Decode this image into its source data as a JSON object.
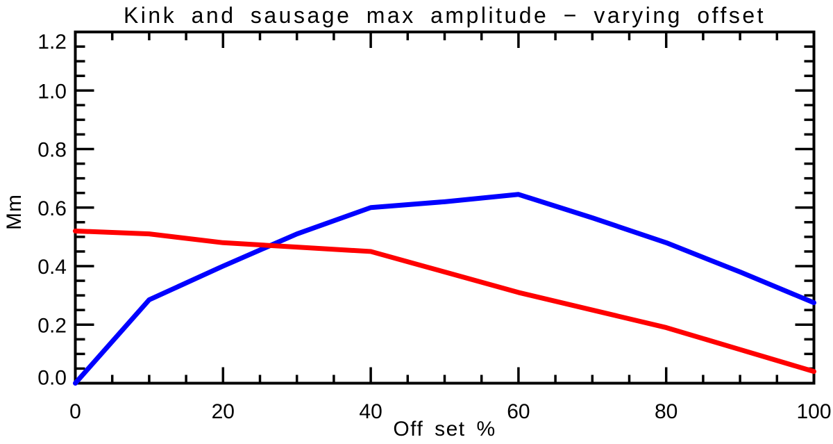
{
  "page": {
    "background": "#ffffff"
  },
  "chart_data": {
    "type": "line",
    "title": "Kink and sausage max amplitude − varying offset",
    "xlabel": "Off set %",
    "ylabel": "Mm",
    "xlim": [
      0,
      100
    ],
    "ylim": [
      0,
      1.2
    ],
    "grid": false,
    "legend": "none",
    "frame_color": "#000000",
    "x_major_ticks": [
      0,
      20,
      40,
      60,
      80,
      100
    ],
    "x_tick_labels": [
      "0",
      "20",
      "40",
      "60",
      "80",
      "100"
    ],
    "x_minor_step": 5,
    "y_major_ticks": [
      0.0,
      0.2,
      0.4,
      0.6,
      0.8,
      1.0,
      1.2
    ],
    "y_tick_labels": [
      "0.0",
      "0.2",
      "0.4",
      "0.6",
      "0.8",
      "1.0",
      "1.2"
    ],
    "y_minor_step": 0.05,
    "x": [
      0,
      10,
      20,
      30,
      40,
      50,
      60,
      70,
      80,
      90,
      100
    ],
    "series": [
      {
        "name": "blue curve",
        "color": "#0000ff",
        "values": [
          0.0,
          0.285,
          0.4,
          0.51,
          0.6,
          0.62,
          0.645,
          0.565,
          0.48,
          0.38,
          0.275
        ]
      },
      {
        "name": "red curve",
        "color": "#ff0000",
        "values": [
          0.52,
          0.51,
          0.48,
          0.465,
          0.45,
          0.38,
          0.31,
          0.25,
          0.19,
          0.115,
          0.04
        ]
      }
    ]
  }
}
